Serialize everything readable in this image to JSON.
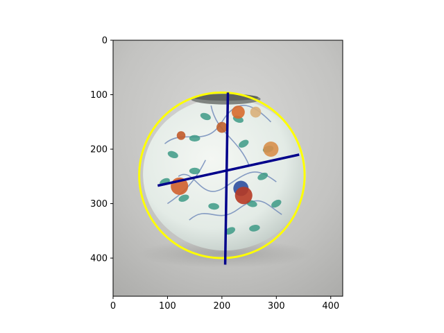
{
  "chart_data": {
    "type": "scatter",
    "title": "",
    "xlabel": "",
    "ylabel": "",
    "xlim": [
      0,
      422
    ],
    "ylim": [
      470,
      0
    ],
    "x_ticks": [
      0,
      100,
      200,
      300,
      400
    ],
    "y_ticks": [
      0,
      100,
      200,
      300,
      400
    ],
    "x_tick_labels": [
      "0",
      "100",
      "200",
      "300",
      "400"
    ],
    "y_tick_labels": [
      "0",
      "100",
      "200",
      "300",
      "400"
    ],
    "grid": false,
    "legend": "none",
    "background_image": "photo of a round porcelain jar painted with melon vines, fruits and leaves on a grey studio background",
    "shapes": [
      {
        "name": "circle",
        "kind": "circle",
        "center": [
          200,
          248
        ],
        "radius": 152,
        "color": "#ffff00"
      },
      {
        "name": "vertical-axis-line",
        "kind": "line",
        "points": [
          [
            211,
            96
          ],
          [
            206,
            412
          ]
        ],
        "color": "#00008b"
      },
      {
        "name": "horizontal-axis-line",
        "kind": "line",
        "points": [
          [
            82,
            267
          ],
          [
            342,
            210
          ]
        ],
        "color": "#00008b"
      }
    ]
  }
}
